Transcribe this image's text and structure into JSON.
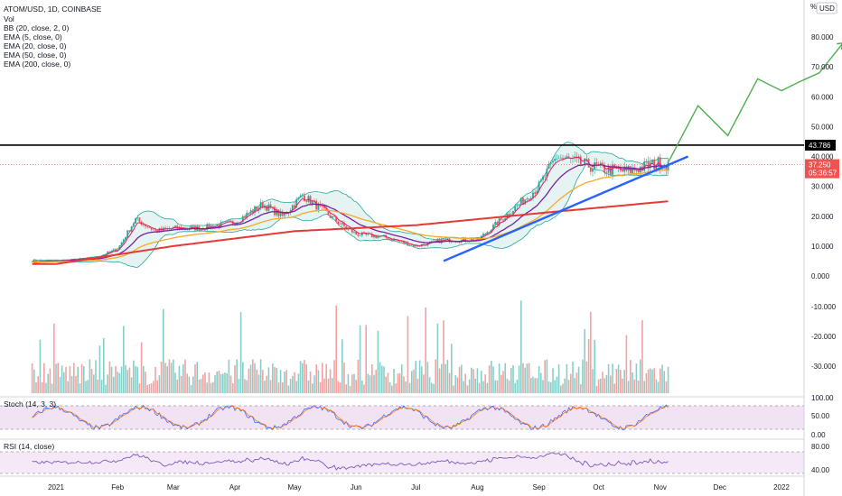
{
  "header": {
    "symbol": "ATOM/USD, 1D, COINBASE",
    "indicators": [
      "Vol",
      "BB (20, close, 2, 0)",
      "EMA (5, close, 0)",
      "EMA (20, close, 0)",
      "EMA (50, close, 0)",
      "EMA (200, close, 0)"
    ]
  },
  "currency_badge": "USD",
  "price_axis_top_label": "%",
  "stoch_label": "Stoch (14, 3, 3)",
  "rsi_label": "RSI (14, close)",
  "colors": {
    "up": "#26a69a",
    "down": "#ef5350",
    "ema5": "#e91e63",
    "ema20": "#7b1fa2",
    "ema50": "#f9a825",
    "ema200": "#e53935",
    "bb": "#26a69a",
    "resistance": "#000000",
    "trendline": "#2962ff",
    "projection": "#4caf50",
    "current_tag": "#ef5350",
    "osc_fill": "#e1bee7"
  },
  "chart_data": [
    {
      "type": "line",
      "title": "",
      "main_price_axis": {
        "ticks": [
          "80.000",
          "70.000",
          "60.000",
          "50.000",
          "40.000",
          "30.000",
          "20.000",
          "10.000",
          "0.000"
        ],
        "ylim": [
          0,
          90
        ]
      },
      "volume_axis": {
        "ticks": [
          "-10.000",
          "-20.000",
          "-30.000"
        ]
      },
      "x_ticks": [
        "2021",
        "Feb",
        "Mar",
        "Apr",
        "May",
        "Jun",
        "Jul",
        "Aug",
        "Sep",
        "Oct",
        "Nov",
        "Dec",
        "2022"
      ],
      "price_close_approx": {
        "x": [
          "2021-01-01",
          "2021-01-20",
          "2021-02-01",
          "2021-02-10",
          "2021-02-20",
          "2021-03-01",
          "2021-03-15",
          "2021-04-01",
          "2021-04-15",
          "2021-04-25",
          "2021-05-05",
          "2021-05-15",
          "2021-05-25",
          "2021-06-01",
          "2021-06-15",
          "2021-07-01",
          "2021-07-15",
          "2021-08-01",
          "2021-08-15",
          "2021-09-01",
          "2021-09-10",
          "2021-09-20",
          "2021-10-01",
          "2021-10-15",
          "2021-11-01",
          "2021-11-05"
        ],
        "y": [
          5,
          6,
          9,
          19,
          15,
          16,
          16,
          18,
          24,
          20,
          27,
          22,
          17,
          14,
          13,
          10,
          12,
          12,
          20,
          30,
          40,
          38,
          36,
          35,
          38,
          37.25
        ]
      },
      "ema200_approx": {
        "x": [
          "2021-01-01",
          "2021-03-01",
          "2021-05-01",
          "2021-07-01",
          "2021-09-01",
          "2021-11-05"
        ],
        "y": [
          4,
          10,
          15,
          17,
          21,
          25
        ]
      },
      "resistance_level": 43.786,
      "current_price": "37.250",
      "countdown": "05:36:57",
      "level_label": "43.786",
      "trendline": {
        "from": {
          "x": "2021-07-15",
          "y": 5
        },
        "to": {
          "x": "2021-11-15",
          "y": 40
        }
      },
      "projection": {
        "x": [
          "2021-11-05",
          "2021-11-20",
          "2021-12-05",
          "2021-12-20",
          "2022-01-01",
          "2022-01-10",
          "2022-01-20",
          "2022-02-01"
        ],
        "y": [
          38,
          57,
          47,
          66,
          62,
          65,
          68,
          78
        ]
      }
    },
    {
      "type": "line",
      "title": "Stoch (14, 3, 3)",
      "axis_ticks": [
        "100.00",
        "50.00",
        "0.00"
      ],
      "ylim": [
        0,
        100
      ],
      "bands": [
        80,
        20
      ]
    },
    {
      "type": "line",
      "title": "RSI (14, close)",
      "axis_ticks": [
        "80.00",
        "40.00"
      ],
      "ylim": [
        20,
        90
      ],
      "bands": [
        70,
        30
      ]
    }
  ]
}
